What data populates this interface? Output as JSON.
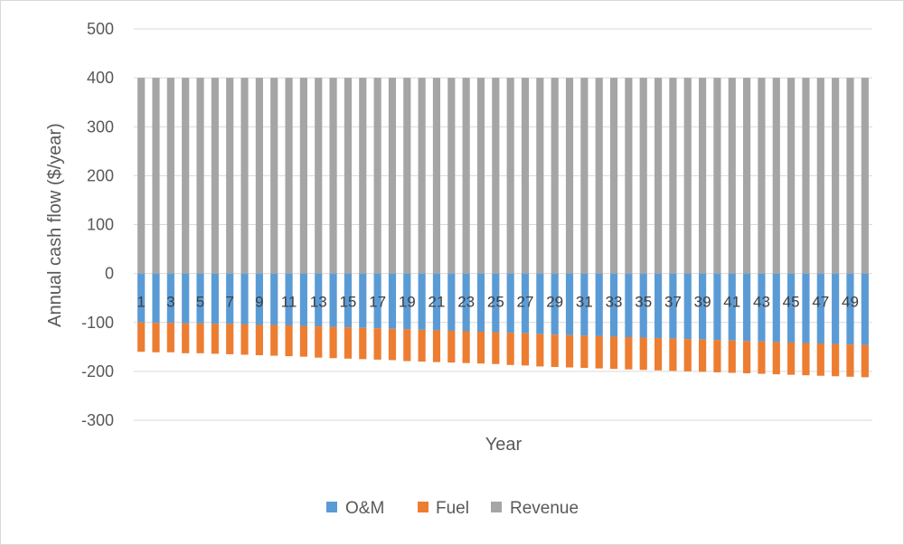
{
  "chart_data": {
    "type": "bar",
    "stacked": true,
    "xlabel": "Year",
    "ylabel": "Annual cash flow ($/year)",
    "ylim": [
      -300,
      500
    ],
    "yticks": [
      500,
      400,
      300,
      200,
      100,
      0,
      -100,
      -200,
      -300
    ],
    "grid": true,
    "legend_position": "bottom",
    "categories": [
      "1",
      "2",
      "3",
      "4",
      "5",
      "6",
      "7",
      "8",
      "9",
      "10",
      "11",
      "12",
      "13",
      "14",
      "15",
      "16",
      "17",
      "18",
      "19",
      "20",
      "21",
      "22",
      "23",
      "24",
      "25",
      "26",
      "27",
      "28",
      "29",
      "30",
      "31",
      "32",
      "33",
      "34",
      "35",
      "36",
      "37",
      "38",
      "39",
      "40",
      "41",
      "42",
      "43",
      "44",
      "45",
      "46",
      "47",
      "48",
      "49",
      "50"
    ],
    "category_labels": [
      "1",
      "3",
      "5",
      "7",
      "9",
      "11",
      "13",
      "15",
      "17",
      "19",
      "21",
      "23",
      "25",
      "27",
      "29",
      "31",
      "33",
      "35",
      "37",
      "39",
      "41",
      "43",
      "45",
      "47",
      "49"
    ],
    "series": [
      {
        "name": "O&M",
        "color": "#5b9bd5",
        "values": [
          -100,
          -101,
          -101,
          -102,
          -102,
          -103,
          -103,
          -104,
          -105,
          -105,
          -106,
          -107,
          -108,
          -109,
          -110,
          -111,
          -112,
          -113,
          -114,
          -115,
          -116,
          -117,
          -118,
          -119,
          -120,
          -121,
          -122,
          -124,
          -125,
          -126,
          -127,
          -128,
          -129,
          -130,
          -131,
          -132,
          -133,
          -134,
          -135,
          -136,
          -137,
          -138,
          -139,
          -140,
          -141,
          -142,
          -143,
          -144,
          -145,
          -146
        ]
      },
      {
        "name": "Fuel",
        "color": "#ed7d31",
        "values": [
          -60,
          -60,
          -60,
          -61,
          -61,
          -61,
          -62,
          -62,
          -62,
          -63,
          -63,
          -63,
          -64,
          -64,
          -64,
          -64,
          -64,
          -64,
          -65,
          -65,
          -65,
          -65,
          -65,
          -65,
          -65,
          -66,
          -66,
          -66,
          -66,
          -66,
          -66,
          -66,
          -66,
          -66,
          -66,
          -66,
          -66,
          -66,
          -66,
          -66,
          -66,
          -66,
          -66,
          -66,
          -66,
          -66,
          -66,
          -66,
          -66,
          -66
        ]
      },
      {
        "name": "Revenue",
        "color": "#a5a5a5",
        "values": [
          400,
          400,
          400,
          400,
          400,
          400,
          400,
          400,
          400,
          400,
          400,
          400,
          400,
          400,
          400,
          400,
          400,
          400,
          400,
          400,
          400,
          400,
          400,
          400,
          400,
          400,
          400,
          400,
          400,
          400,
          400,
          400,
          400,
          400,
          400,
          400,
          400,
          400,
          400,
          400,
          400,
          400,
          400,
          400,
          400,
          400,
          400,
          400,
          400,
          400
        ]
      }
    ]
  }
}
